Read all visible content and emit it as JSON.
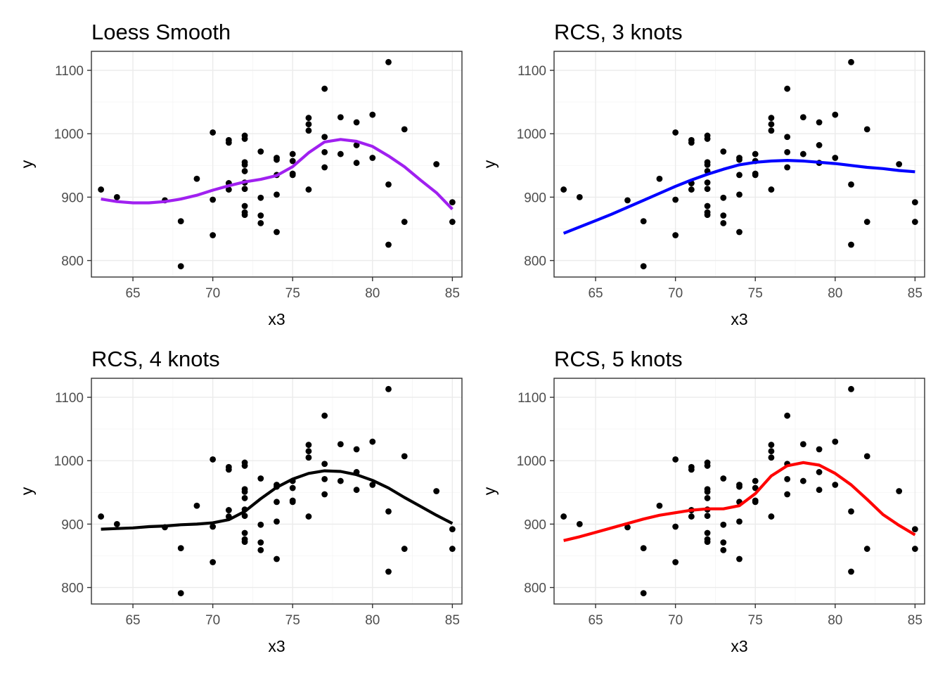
{
  "points": {
    "x": [
      63,
      64,
      67,
      68,
      68,
      69,
      70,
      70,
      70,
      71,
      71,
      71,
      71,
      71,
      72,
      72,
      72,
      72,
      72,
      72,
      72,
      72,
      72,
      72,
      73,
      73,
      73,
      73,
      74,
      74,
      74,
      74,
      74,
      75,
      75,
      75,
      75,
      76,
      76,
      76,
      76,
      77,
      77,
      77,
      77,
      78,
      78,
      79,
      79,
      79,
      80,
      80,
      81,
      81,
      81,
      82,
      82,
      84,
      85,
      85
    ],
    "y": [
      912,
      900,
      895,
      862,
      791,
      929,
      1002,
      896,
      840,
      990,
      986,
      922,
      912,
      922,
      997,
      992,
      955,
      951,
      941,
      923,
      913,
      886,
      876,
      872,
      972,
      899,
      871,
      859,
      962,
      959,
      935,
      904,
      845,
      968,
      957,
      937,
      935,
      1025,
      1015,
      1005,
      912,
      1071,
      995,
      971,
      947,
      1026,
      968,
      1018,
      982,
      954,
      1030,
      962,
      1113,
      920,
      825,
      1007,
      861,
      952,
      892,
      861
    ]
  },
  "chart_data": [
    {
      "type": "scatter",
      "title": "Loess Smooth",
      "xlabel": "x3",
      "ylabel": "y",
      "xlim": [
        62.4,
        85.6
      ],
      "ylim": [
        774,
        1130
      ],
      "xticks": [
        "65",
        "70",
        "75",
        "80",
        "85"
      ],
      "yticks": [
        "800",
        "900",
        "1000",
        "1100"
      ],
      "xtick_values": [
        65,
        70,
        75,
        80,
        85
      ],
      "ytick_values": [
        800,
        900,
        1000,
        1100
      ],
      "grid": true,
      "fit": {
        "color": "#a020f0",
        "x": [
          63,
          64,
          65,
          66,
          67,
          68,
          69,
          70,
          71,
          72,
          73,
          74,
          75,
          76,
          77,
          78,
          79,
          80,
          81,
          82,
          83,
          84,
          85
        ],
        "y": [
          897,
          893,
          891,
          891,
          893,
          897,
          903,
          911,
          918,
          924,
          928,
          934,
          948,
          970,
          987,
          991,
          988,
          980,
          965,
          948,
          927,
          907,
          881
        ]
      }
    },
    {
      "type": "scatter",
      "title": "RCS, 3 knots",
      "xlabel": "x3",
      "ylabel": "y",
      "xlim": [
        62.4,
        85.6
      ],
      "ylim": [
        774,
        1130
      ],
      "xticks": [
        "65",
        "70",
        "75",
        "80",
        "85"
      ],
      "yticks": [
        "800",
        "900",
        "1000",
        "1100"
      ],
      "xtick_values": [
        65,
        70,
        75,
        80,
        85
      ],
      "ytick_values": [
        800,
        900,
        1000,
        1100
      ],
      "grid": true,
      "fit": {
        "color": "#0000ff",
        "x": [
          63,
          64,
          65,
          66,
          67,
          68,
          69,
          70,
          71,
          72,
          73,
          74,
          75,
          76,
          77,
          78,
          79,
          80,
          81,
          82,
          83,
          84,
          85
        ],
        "y": [
          843,
          853,
          863,
          873,
          884,
          895,
          906,
          917,
          927,
          936,
          944,
          951,
          955,
          957,
          958,
          957,
          955,
          953,
          950,
          947,
          945,
          942,
          940
        ]
      }
    },
    {
      "type": "scatter",
      "title": "RCS, 4 knots",
      "xlabel": "x3",
      "ylabel": "y",
      "xlim": [
        62.4,
        85.6
      ],
      "ylim": [
        774,
        1130
      ],
      "xticks": [
        "65",
        "70",
        "75",
        "80",
        "85"
      ],
      "yticks": [
        "800",
        "900",
        "1000",
        "1100"
      ],
      "xtick_values": [
        65,
        70,
        75,
        80,
        85
      ],
      "ytick_values": [
        800,
        900,
        1000,
        1100
      ],
      "grid": true,
      "fit": {
        "color": "#000000",
        "x": [
          63,
          64,
          65,
          66,
          67,
          68,
          69,
          70,
          71,
          72,
          73,
          74,
          75,
          76,
          77,
          78,
          79,
          80,
          81,
          82,
          83,
          84,
          85
        ],
        "y": [
          892,
          893,
          894,
          896,
          897,
          899,
          900,
          902,
          907,
          920,
          940,
          958,
          971,
          980,
          984,
          983,
          978,
          969,
          957,
          942,
          928,
          914,
          901
        ]
      }
    },
    {
      "type": "scatter",
      "title": "RCS, 5 knots",
      "xlabel": "x3",
      "ylabel": "y",
      "xlim": [
        62.4,
        85.6
      ],
      "ylim": [
        774,
        1130
      ],
      "xticks": [
        "65",
        "70",
        "75",
        "80",
        "85"
      ],
      "yticks": [
        "800",
        "900",
        "1000",
        "1100"
      ],
      "xtick_values": [
        65,
        70,
        75,
        80,
        85
      ],
      "ytick_values": [
        800,
        900,
        1000,
        1100
      ],
      "grid": true,
      "fit": {
        "color": "#ff0000",
        "x": [
          63,
          64,
          65,
          66,
          67,
          68,
          69,
          70,
          71,
          72,
          73,
          74,
          75,
          76,
          77,
          78,
          79,
          80,
          81,
          82,
          83,
          84,
          85
        ],
        "y": [
          874,
          880,
          887,
          894,
          901,
          908,
          914,
          918,
          922,
          924,
          924,
          929,
          948,
          976,
          992,
          997,
          993,
          980,
          962,
          939,
          915,
          898,
          883
        ]
      }
    }
  ]
}
